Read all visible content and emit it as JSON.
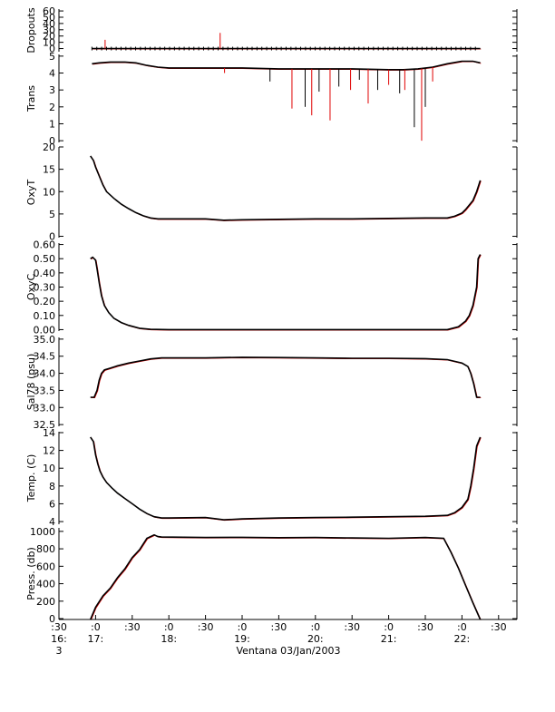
{
  "chart_data": {
    "type": "line",
    "colors": {
      "trace": "#000000",
      "raw": "#e00000"
    },
    "xlabel": "Ventana 03/Jan/2003",
    "xlim_hours": [
      16.5,
      22.75
    ],
    "x_ticks": [
      {
        "label_top": ":30",
        "label_hour": "16:",
        "label_extra": "3",
        "hour": 16.5
      },
      {
        "label_top": ":0",
        "label_hour": "17:",
        "label_extra": "",
        "hour": 17.0
      },
      {
        "label_top": ":30",
        "label_hour": "",
        "label_extra": "",
        "hour": 17.5
      },
      {
        "label_top": ":0",
        "label_hour": "18:",
        "label_extra": "",
        "hour": 18.0
      },
      {
        "label_top": ":30",
        "label_hour": "",
        "label_extra": "",
        "hour": 18.5
      },
      {
        "label_top": ":0",
        "label_hour": "19:",
        "label_extra": "",
        "hour": 19.0
      },
      {
        "label_top": ":30",
        "label_hour": "",
        "label_extra": "",
        "hour": 19.5
      },
      {
        "label_top": ":0",
        "label_hour": "20:",
        "label_extra": "",
        "hour": 20.0
      },
      {
        "label_top": ":30",
        "label_hour": "",
        "label_extra": "",
        "hour": 20.5
      },
      {
        "label_top": ":0",
        "label_hour": "21:",
        "label_extra": "",
        "hour": 21.0
      },
      {
        "label_top": ":30",
        "label_hour": "",
        "label_extra": "",
        "hour": 21.5
      },
      {
        "label_top": ":0",
        "label_hour": "22:",
        "label_extra": "",
        "hour": 22.0
      },
      {
        "label_top": ":30",
        "label_hour": "",
        "label_extra": "",
        "hour": 22.5
      }
    ],
    "panels": [
      {
        "name": "dropouts",
        "ylabel": "Dropouts",
        "ylim": [
          -5,
          63
        ],
        "yticks": [
          0,
          10,
          20,
          30,
          40,
          50,
          60
        ],
        "ytick_labels": [
          "0",
          "10",
          "20",
          "30",
          "40",
          "50",
          "60"
        ],
        "series": [
          {
            "x": [
              16.95,
              17.3,
              18.6,
              19.0,
              20.0,
              21.0,
              22.0,
              22.25
            ],
            "y": [
              0,
              0,
              0,
              0,
              0,
              0,
              0,
              0
            ]
          }
        ],
        "spikes": [
          {
            "x": 17.13,
            "y": 14
          },
          {
            "x": 18.7,
            "y": 25
          }
        ]
      },
      {
        "name": "trans",
        "ylabel": "Trans",
        "ylim": [
          -0.1,
          5.1
        ],
        "yticks": [
          0,
          1,
          2,
          3,
          4,
          5
        ],
        "ytick_labels": [
          "0",
          "1",
          "2",
          "3",
          "4",
          "5"
        ],
        "series": [
          {
            "x": [
              16.95,
              17.05,
              17.2,
              17.4,
              17.55,
              17.7,
              17.85,
              18.0,
              18.5,
              19.0,
              19.5,
              20.0,
              20.5,
              21.0,
              21.2,
              21.4,
              21.6,
              21.8,
              22.0,
              22.15,
              22.25
            ],
            "y": [
              4.55,
              4.6,
              4.65,
              4.65,
              4.6,
              4.45,
              4.35,
              4.3,
              4.3,
              4.3,
              4.25,
              4.25,
              4.25,
              4.2,
              4.2,
              4.25,
              4.35,
              4.55,
              4.7,
              4.7,
              4.6
            ]
          }
        ],
        "dips": [
          {
            "x": 18.76,
            "y": 4.0
          },
          {
            "x": 19.38,
            "y": 3.5
          },
          {
            "x": 19.68,
            "y": 1.9
          },
          {
            "x": 19.86,
            "y": 2.0
          },
          {
            "x": 19.95,
            "y": 1.5
          },
          {
            "x": 20.05,
            "y": 2.9
          },
          {
            "x": 20.2,
            "y": 1.2
          },
          {
            "x": 20.32,
            "y": 3.2
          },
          {
            "x": 20.48,
            "y": 3.0
          },
          {
            "x": 20.6,
            "y": 3.6
          },
          {
            "x": 20.72,
            "y": 2.2
          },
          {
            "x": 20.85,
            "y": 3.0
          },
          {
            "x": 21.0,
            "y": 3.3
          },
          {
            "x": 21.15,
            "y": 2.8
          },
          {
            "x": 21.22,
            "y": 3.0
          },
          {
            "x": 21.35,
            "y": 0.8
          },
          {
            "x": 21.45,
            "y": 0.0
          },
          {
            "x": 21.5,
            "y": 2.0
          },
          {
            "x": 21.6,
            "y": 3.5
          }
        ]
      },
      {
        "name": "oxyt",
        "ylabel": "OxyT",
        "ylim": [
          -0.3,
          20.0
        ],
        "yticks": [
          0,
          5,
          10,
          15,
          20
        ],
        "ytick_labels": [
          "0",
          "5",
          "10",
          "15",
          "20"
        ],
        "series": [
          {
            "x": [
              16.93,
              16.97,
              17.0,
              17.05,
              17.1,
              17.15,
              17.25,
              17.35,
              17.45,
              17.55,
              17.65,
              17.75,
              17.85,
              18.0,
              18.5,
              18.75,
              19.0,
              19.5,
              20.0,
              20.5,
              21.0,
              21.5,
              21.8,
              21.9,
              22.0,
              22.05,
              22.1,
              22.15,
              22.2,
              22.25
            ],
            "y": [
              18.0,
              17.0,
              15.5,
              13.5,
              11.5,
              10.0,
              8.5,
              7.2,
              6.2,
              5.3,
              4.6,
              4.1,
              3.9,
              3.9,
              3.9,
              3.6,
              3.7,
              3.8,
              3.9,
              3.9,
              4.0,
              4.1,
              4.1,
              4.5,
              5.2,
              6.0,
              7.0,
              8.0,
              10.0,
              12.5
            ]
          }
        ]
      },
      {
        "name": "oxyc",
        "ylabel": "OxyC",
        "ylim": [
          -0.01,
          0.61
        ],
        "yticks": [
          0.0,
          0.1,
          0.2,
          0.3,
          0.4,
          0.5,
          0.6
        ],
        "ytick_labels": [
          "0.00",
          "0.10",
          "0.20",
          "0.30",
          "0.40",
          "0.50",
          "0.60"
        ],
        "series": [
          {
            "x": [
              16.93,
              16.96,
              17.0,
              17.02,
              17.05,
              17.08,
              17.12,
              17.18,
              17.25,
              17.35,
              17.45,
              17.6,
              17.75,
              18.0,
              18.5,
              19.0,
              19.5,
              20.0,
              20.5,
              21.0,
              21.5,
              21.8,
              21.95,
              22.05,
              22.1,
              22.15,
              22.2,
              22.22,
              22.25
            ],
            "y": [
              0.5,
              0.51,
              0.49,
              0.43,
              0.33,
              0.24,
              0.17,
              0.12,
              0.08,
              0.05,
              0.03,
              0.01,
              0.002,
              0.0,
              0.0,
              0.0,
              0.0,
              0.0,
              0.0,
              0.0,
              0.0,
              0.0,
              0.02,
              0.06,
              0.1,
              0.17,
              0.3,
              0.5,
              0.53
            ]
          }
        ]
      },
      {
        "name": "sal78",
        "ylabel": "Sal78 (psu)",
        "ylim": [
          32.45,
          35.05
        ],
        "yticks": [
          32.5,
          33.0,
          33.5,
          34.0,
          34.5,
          35.0
        ],
        "ytick_labels": [
          "32.5",
          "33.0",
          "33.5",
          "34.0",
          "34.5",
          "35.0"
        ],
        "series": [
          {
            "x": [
              16.93,
              16.98,
              17.02,
              17.05,
              17.08,
              17.12,
              17.2,
              17.3,
              17.45,
              17.6,
              17.75,
              17.9,
              18.0,
              18.5,
              19.0,
              19.5,
              20.0,
              20.5,
              21.0,
              21.5,
              21.8,
              21.9,
              22.0,
              22.08,
              22.12,
              22.16,
              22.2,
              22.25
            ],
            "y": [
              33.3,
              33.3,
              33.5,
              33.8,
              34.0,
              34.1,
              34.15,
              34.22,
              34.3,
              34.36,
              34.42,
              34.45,
              34.45,
              34.45,
              34.47,
              34.46,
              34.45,
              34.44,
              34.44,
              34.43,
              34.4,
              34.35,
              34.3,
              34.2,
              34.0,
              33.7,
              33.3,
              33.3
            ]
          }
        ]
      },
      {
        "name": "temp",
        "ylabel": "Temp. (C)",
        "ylim": [
          3.7,
          14.1
        ],
        "yticks": [
          4,
          6,
          8,
          10,
          12,
          14
        ],
        "ytick_labels": [
          "4",
          "6",
          "8",
          "10",
          "12",
          "14"
        ],
        "series": [
          {
            "x": [
              16.93,
              16.97,
              17.0,
              17.03,
              17.06,
              17.1,
              17.15,
              17.22,
              17.3,
              17.4,
              17.5,
              17.6,
              17.7,
              17.8,
              17.9,
              18.0,
              18.5,
              18.75,
              19.0,
              19.5,
              20.0,
              20.5,
              21.0,
              21.5,
              21.8,
              21.9,
              22.0,
              22.08,
              22.12,
              22.16,
              22.2,
              22.25
            ],
            "y": [
              13.5,
              13.0,
              11.5,
              10.5,
              9.7,
              9.0,
              8.4,
              7.8,
              7.2,
              6.6,
              6.0,
              5.4,
              4.9,
              4.55,
              4.4,
              4.4,
              4.45,
              4.2,
              4.3,
              4.4,
              4.45,
              4.5,
              4.55,
              4.6,
              4.7,
              5.0,
              5.6,
              6.5,
              8.0,
              10.0,
              12.5,
              13.5
            ]
          }
        ]
      },
      {
        "name": "press",
        "ylabel": "Press. (db)",
        "ylim": [
          -10,
          1040
        ],
        "yticks": [
          0,
          200,
          400,
          600,
          800,
          1000
        ],
        "ytick_labels": [
          "0",
          "200",
          "400",
          "600",
          "800",
          "1000"
        ],
        "series": [
          {
            "x": [
              16.93,
              17.0,
              17.1,
              17.2,
              17.3,
              17.4,
              17.5,
              17.6,
              17.7,
              17.8,
              17.85,
              17.9,
              18.5,
              19.0,
              19.5,
              20.0,
              20.5,
              21.0,
              21.5,
              21.75,
              21.85,
              21.95,
              22.05,
              22.15,
              22.25
            ],
            "y": [
              -10,
              130,
              260,
              350,
              470,
              570,
              700,
              790,
              920,
              960,
              940,
              935,
              930,
              932,
              928,
              930,
              925,
              920,
              930,
              920,
              760,
              580,
              380,
              180,
              -10
            ]
          }
        ]
      }
    ]
  }
}
